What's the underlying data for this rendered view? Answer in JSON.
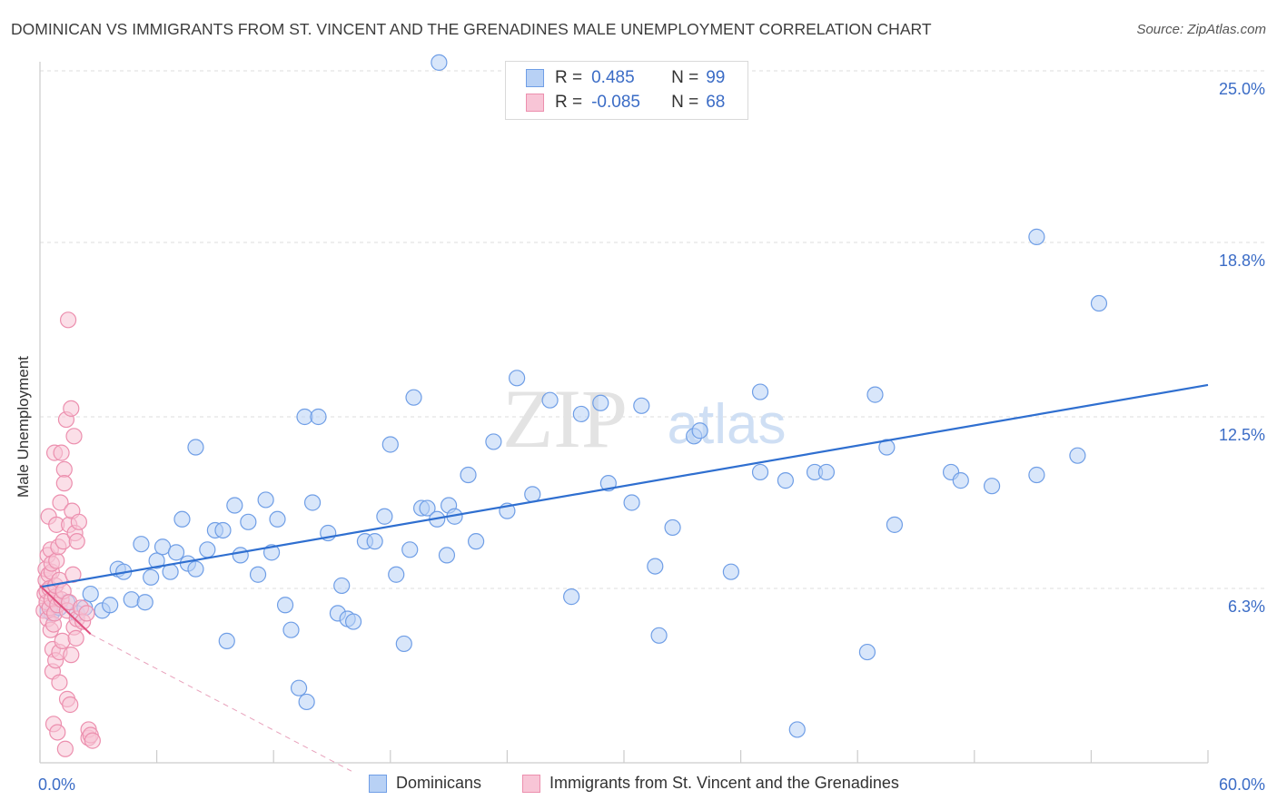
{
  "title": "DOMINICAN VS IMMIGRANTS FROM ST. VINCENT AND THE GRENADINES MALE UNEMPLOYMENT CORRELATION CHART",
  "source": "Source: ZipAtlas.com",
  "watermark": {
    "zip": "ZIP",
    "atlas": "atlas"
  },
  "legend_top": {
    "rows": [
      {
        "r_label": "R =",
        "r_value": "0.485",
        "n_label": "N =",
        "n_value": "99",
        "color": "#6f9ee6",
        "fill": "#b8d1f5"
      },
      {
        "r_label": "R =",
        "r_value": "-0.085",
        "n_label": "N =",
        "n_value": "68",
        "color": "#ec8fae",
        "fill": "#f8c5d6"
      }
    ]
  },
  "legend_bottom": [
    {
      "label": "Dominicans",
      "color": "#6f9ee6",
      "fill": "#b8d1f5"
    },
    {
      "label": "Immigrants from St. Vincent and the Grenadines",
      "color": "#ec8fae",
      "fill": "#f8c5d6"
    }
  ],
  "chart_data": {
    "type": "scatter",
    "title": "DOMINICAN VS IMMIGRANTS FROM ST. VINCENT AND THE GRENADINES MALE UNEMPLOYMENT CORRELATION CHART",
    "xlabel": "",
    "ylabel": "Male Unemployment",
    "xlim": [
      0,
      60
    ],
    "ylim": [
      0,
      25
    ],
    "x_tick_labels": {
      "min": "0.0%",
      "max": "60.0%"
    },
    "y_ticks": [
      6.3,
      12.5,
      18.8,
      25.0
    ],
    "y_tick_labels": [
      "6.3%",
      "12.5%",
      "18.8%",
      "25.0%"
    ],
    "grid": true,
    "legend_position": "top-center",
    "series": [
      {
        "name": "Dominicans",
        "color": "#6f9ee6",
        "fill": "#b8d1f5",
        "trend": {
          "x": [
            0,
            60
          ],
          "y": [
            6.35,
            13.65
          ],
          "style": "solid",
          "color": "#2f6fd0"
        },
        "points": [
          [
            0.4,
            5.5
          ],
          [
            0.6,
            5.4
          ],
          [
            1.0,
            5.6
          ],
          [
            1.4,
            5.8
          ],
          [
            1.9,
            5.4
          ],
          [
            2.3,
            5.6
          ],
          [
            2.6,
            6.1
          ],
          [
            3.2,
            5.5
          ],
          [
            3.6,
            5.7
          ],
          [
            4.0,
            7.0
          ],
          [
            4.3,
            6.9
          ],
          [
            4.7,
            5.9
          ],
          [
            5.2,
            7.9
          ],
          [
            5.4,
            5.8
          ],
          [
            5.7,
            6.7
          ],
          [
            6.0,
            7.3
          ],
          [
            6.3,
            7.8
          ],
          [
            6.7,
            6.9
          ],
          [
            7.0,
            7.6
          ],
          [
            7.3,
            8.8
          ],
          [
            7.6,
            7.2
          ],
          [
            8.0,
            7.0
          ],
          [
            8.0,
            11.4
          ],
          [
            8.6,
            7.7
          ],
          [
            9.0,
            8.4
          ],
          [
            9.4,
            8.4
          ],
          [
            9.6,
            4.4
          ],
          [
            10.0,
            9.3
          ],
          [
            10.3,
            7.5
          ],
          [
            10.7,
            8.7
          ],
          [
            11.2,
            6.8
          ],
          [
            11.6,
            9.5
          ],
          [
            11.9,
            7.6
          ],
          [
            12.2,
            8.8
          ],
          [
            12.6,
            5.7
          ],
          [
            12.9,
            4.8
          ],
          [
            13.3,
            2.7
          ],
          [
            13.6,
            12.5
          ],
          [
            13.7,
            2.2
          ],
          [
            14.0,
            9.4
          ],
          [
            14.3,
            12.5
          ],
          [
            14.8,
            8.3
          ],
          [
            15.3,
            5.4
          ],
          [
            15.5,
            6.4
          ],
          [
            15.8,
            5.2
          ],
          [
            16.1,
            5.1
          ],
          [
            16.7,
            8.0
          ],
          [
            17.2,
            8.0
          ],
          [
            17.7,
            8.9
          ],
          [
            18.0,
            11.5
          ],
          [
            18.3,
            6.8
          ],
          [
            18.7,
            4.3
          ],
          [
            19.0,
            7.7
          ],
          [
            19.2,
            13.2
          ],
          [
            19.6,
            9.2
          ],
          [
            19.9,
            9.2
          ],
          [
            20.4,
            8.8
          ],
          [
            20.9,
            7.5
          ],
          [
            21.0,
            9.3
          ],
          [
            21.3,
            8.9
          ],
          [
            22.0,
            10.4
          ],
          [
            22.4,
            8.0
          ],
          [
            23.3,
            11.6
          ],
          [
            24.0,
            9.1
          ],
          [
            24.5,
            13.9
          ],
          [
            25.3,
            9.7
          ],
          [
            26.2,
            13.1
          ],
          [
            27.3,
            6.0
          ],
          [
            27.8,
            12.6
          ],
          [
            28.8,
            13.0
          ],
          [
            29.2,
            10.1
          ],
          [
            30.4,
            9.4
          ],
          [
            30.9,
            12.9
          ],
          [
            31.6,
            7.1
          ],
          [
            31.8,
            4.6
          ],
          [
            32.5,
            8.5
          ],
          [
            33.6,
            11.8
          ],
          [
            33.9,
            12.0
          ],
          [
            35.5,
            6.9
          ],
          [
            37.0,
            13.4
          ],
          [
            37.0,
            10.5
          ],
          [
            38.3,
            10.2
          ],
          [
            38.9,
            1.2
          ],
          [
            39.8,
            10.5
          ],
          [
            40.4,
            10.5
          ],
          [
            42.5,
            4.0
          ],
          [
            42.9,
            13.3
          ],
          [
            43.5,
            11.4
          ],
          [
            43.9,
            8.6
          ],
          [
            46.8,
            10.5
          ],
          [
            47.3,
            10.2
          ],
          [
            48.9,
            10.0
          ],
          [
            51.2,
            10.4
          ],
          [
            51.2,
            19.0
          ],
          [
            53.3,
            11.1
          ],
          [
            54.4,
            16.6
          ],
          [
            30.0,
            24.0
          ],
          [
            26.5,
            24.9
          ],
          [
            20.5,
            25.3
          ]
        ]
      },
      {
        "name": "Immigrants from St. Vincent and the Grenadines",
        "color": "#ec8fae",
        "fill": "#f8c5d6",
        "trend": {
          "x": [
            0,
            2.6
          ],
          "y": [
            6.4,
            4.65
          ],
          "x_dash": [
            2.6,
            16
          ],
          "y_dash": [
            4.65,
            -0.3
          ],
          "style": "solid+dashed",
          "color": "#e0507f"
        },
        "points": [
          [
            0.2,
            5.5
          ],
          [
            0.25,
            6.1
          ],
          [
            0.3,
            6.6
          ],
          [
            0.3,
            7.0
          ],
          [
            0.35,
            5.8
          ],
          [
            0.35,
            6.2
          ],
          [
            0.4,
            7.5
          ],
          [
            0.4,
            5.2
          ],
          [
            0.45,
            8.9
          ],
          [
            0.45,
            6.8
          ],
          [
            0.5,
            5.6
          ],
          [
            0.5,
            6.3
          ],
          [
            0.55,
            7.7
          ],
          [
            0.55,
            4.8
          ],
          [
            0.6,
            5.9
          ],
          [
            0.6,
            6.9
          ],
          [
            0.6,
            7.2
          ],
          [
            0.65,
            4.1
          ],
          [
            0.65,
            3.3
          ],
          [
            0.7,
            5.0
          ],
          [
            0.7,
            1.4
          ],
          [
            0.75,
            11.2
          ],
          [
            0.75,
            5.4
          ],
          [
            0.8,
            6.0
          ],
          [
            0.8,
            6.4
          ],
          [
            0.8,
            3.7
          ],
          [
            0.85,
            8.6
          ],
          [
            0.85,
            7.3
          ],
          [
            0.9,
            1.1
          ],
          [
            0.9,
            5.7
          ],
          [
            0.95,
            7.8
          ],
          [
            1.0,
            6.6
          ],
          [
            1.0,
            4.0
          ],
          [
            1.0,
            2.9
          ],
          [
            1.05,
            9.4
          ],
          [
            1.1,
            5.9
          ],
          [
            1.1,
            11.2
          ],
          [
            1.15,
            4.4
          ],
          [
            1.2,
            8.0
          ],
          [
            1.2,
            6.2
          ],
          [
            1.25,
            10.6
          ],
          [
            1.25,
            10.1
          ],
          [
            1.3,
            0.5
          ],
          [
            1.35,
            12.4
          ],
          [
            1.4,
            2.3
          ],
          [
            1.4,
            5.5
          ],
          [
            1.45,
            16.0
          ],
          [
            1.5,
            5.8
          ],
          [
            1.5,
            8.6
          ],
          [
            1.55,
            2.1
          ],
          [
            1.6,
            12.8
          ],
          [
            1.6,
            3.9
          ],
          [
            1.65,
            9.1
          ],
          [
            1.7,
            6.8
          ],
          [
            1.75,
            11.8
          ],
          [
            1.75,
            4.9
          ],
          [
            1.8,
            8.3
          ],
          [
            1.85,
            4.5
          ],
          [
            1.9,
            8.0
          ],
          [
            1.9,
            5.2
          ],
          [
            2.0,
            8.7
          ],
          [
            2.1,
            5.6
          ],
          [
            2.2,
            5.1
          ],
          [
            2.4,
            5.4
          ],
          [
            2.5,
            0.9
          ],
          [
            2.5,
            1.2
          ],
          [
            2.6,
            1.0
          ],
          [
            2.7,
            0.8
          ]
        ]
      }
    ]
  }
}
